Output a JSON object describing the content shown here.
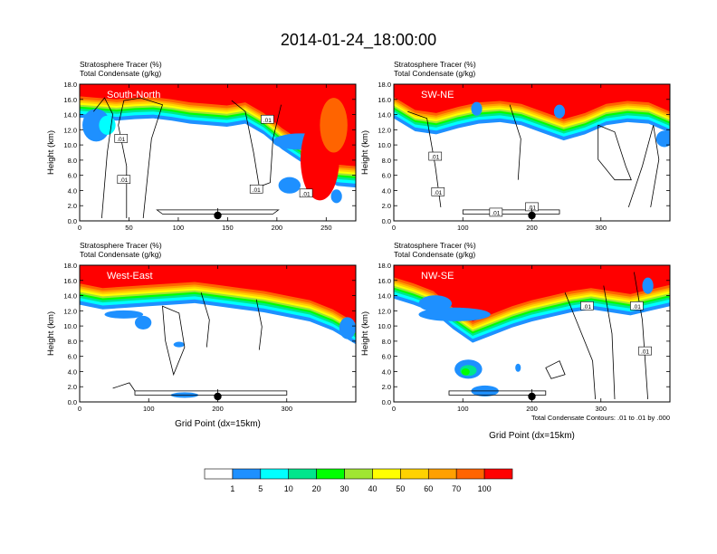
{
  "title": "2014-01-24_18:00:00",
  "colors": {
    "levels": [
      "#ffffff",
      "#1e90ff",
      "#00ffff",
      "#00e68c",
      "#00ff00",
      "#a0e632",
      "#ffff00",
      "#ffd200",
      "#ffa000",
      "#ff6400",
      "#ff0000"
    ],
    "contour": "#000000",
    "label_bg": "#ffffff"
  },
  "colorbar": {
    "boxes": 11,
    "labels": [
      "1",
      "5",
      "10",
      "20",
      "30",
      "40",
      "50",
      "60",
      "70",
      "100"
    ]
  },
  "chart_data": [
    {
      "type": "heatmap",
      "title_line1": "Stratosphere Tracer   (%)",
      "title_line2": "Total Condensate   (g/kg)",
      "corner_label": "South-North",
      "ylabel": "Height (km)",
      "xlabel": "",
      "xlim": [
        0,
        280
      ],
      "ylim": [
        0,
        18
      ],
      "xticks": [
        0,
        50,
        100,
        150,
        200,
        250
      ],
      "yticks": [
        "0.0",
        "2.0",
        "4.0",
        "6.0",
        "8.0",
        "10.0",
        "12.0",
        "14.0",
        "16.0",
        "18.0"
      ],
      "tracer_top_km": [
        16.4,
        16.2,
        16.0,
        16.2,
        16.3,
        16.0,
        15.6,
        15.4,
        15.2,
        15.6,
        14.2,
        12.2,
        10.6,
        8.6,
        7.4,
        7.2
      ],
      "contour_labels": [
        ".01",
        ".01",
        ".01",
        ".01",
        ".01"
      ],
      "marker_x": 140,
      "footer": ""
    },
    {
      "type": "heatmap",
      "title_line1": "Stratosphere Tracer   (%)",
      "title_line2": "Total Condensate   (g/kg)",
      "corner_label": "SW-NE",
      "ylabel": "Height (km)",
      "xlabel": "",
      "xlim": [
        0,
        400
      ],
      "ylim": [
        0,
        18
      ],
      "xticks": [
        0,
        100,
        200,
        300
      ],
      "yticks": [
        "0.0",
        "2.0",
        "4.0",
        "6.0",
        "8.0",
        "10.0",
        "12.0",
        "14.0",
        "16.0",
        "18.0"
      ],
      "tracer_top_km": [
        16.3,
        14.6,
        14.2,
        15.0,
        15.6,
        15.8,
        15.4,
        14.4,
        13.4,
        14.2,
        15.4,
        15.8,
        15.6,
        14.4
      ],
      "contour_labels": [
        ".01",
        ".01",
        ".01",
        ".01"
      ],
      "marker_x": 200,
      "footer": ""
    },
    {
      "type": "heatmap",
      "title_line1": "Stratosphere Tracer   (%)",
      "title_line2": "Total Condensate   (g/kg)",
      "corner_label": "West-East",
      "ylabel": "Height (km)",
      "xlabel": "Grid Point (dx=15km)",
      "xlim": [
        0,
        400
      ],
      "ylim": [
        0,
        18
      ],
      "xticks": [
        0,
        100,
        200,
        300
      ],
      "yticks": [
        "0.0",
        "2.0",
        "4.0",
        "6.0",
        "8.0",
        "10.0",
        "12.0",
        "14.0",
        "16.0",
        "18.0"
      ],
      "tracer_top_km": [
        15.6,
        15.0,
        15.2,
        15.4,
        15.6,
        15.8,
        15.4,
        15.0,
        14.6,
        14.0,
        13.4,
        12.2,
        10.4
      ],
      "contour_labels": [],
      "marker_x": 200,
      "footer": ""
    },
    {
      "type": "heatmap",
      "title_line1": "Stratosphere Tracer   (%)",
      "title_line2": "Total Condensate   (g/kg)",
      "corner_label": "NW-SE",
      "ylabel": "Height (km)",
      "xlabel": "Grid Point (dx=15km)",
      "xlim": [
        0,
        400
      ],
      "ylim": [
        0,
        18
      ],
      "xticks": [
        0,
        100,
        200,
        300
      ],
      "yticks": [
        "0.0",
        "2.0",
        "4.0",
        "6.0",
        "8.0",
        "10.0",
        "12.0",
        "14.0",
        "16.0",
        "18.0"
      ],
      "tracer_top_km": [
        16.4,
        15.6,
        14.6,
        12.4,
        10.6,
        11.6,
        12.6,
        13.4,
        14.0,
        14.6,
        15.0,
        14.6,
        14.2,
        14.8,
        15.4
      ],
      "contour_labels": [
        ".01",
        ".01",
        ".01"
      ],
      "marker_x": 200,
      "footer": "Total Condensate Contours: .01 to .01 by .000"
    }
  ]
}
